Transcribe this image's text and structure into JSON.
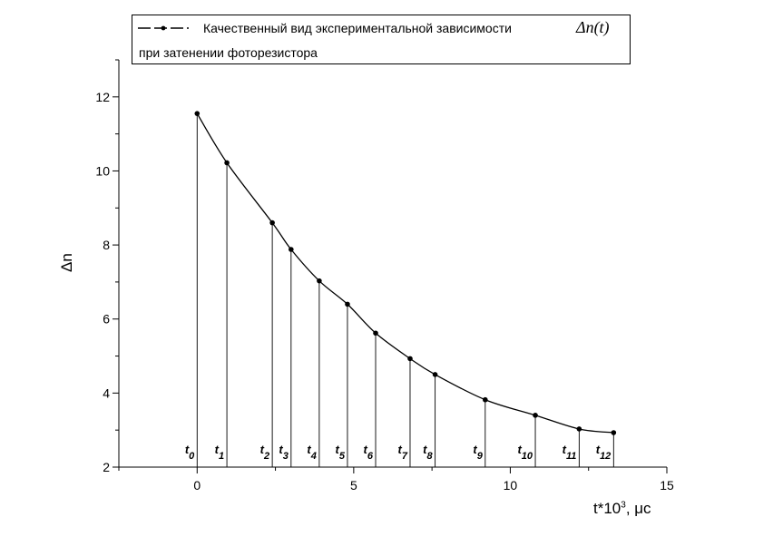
{
  "chart_data": {
    "type": "line",
    "x": [
      0,
      0.95,
      2.4,
      3.0,
      3.9,
      4.8,
      5.7,
      6.8,
      7.6,
      9.2,
      10.8,
      12.2,
      13.3
    ],
    "y": [
      11.55,
      10.22,
      8.6,
      7.88,
      7.03,
      6.4,
      5.62,
      4.93,
      4.5,
      3.82,
      3.4,
      3.03,
      2.93
    ],
    "point_labels": [
      "0",
      "1",
      "2",
      "3",
      "4",
      "5",
      "6",
      "7",
      "8",
      "9",
      "10",
      "11",
      "12"
    ],
    "point_label_prefix": "t",
    "xlim": [
      -2.5,
      15
    ],
    "ylim": [
      2,
      13
    ],
    "xticks": [
      0,
      5,
      10,
      15
    ],
    "yticks": [
      2,
      4,
      6,
      8,
      10,
      12
    ],
    "xlabel": "t*10",
    "xlabel_sup": "3",
    "xlabel_unit": ", μс",
    "ylabel": "Δn",
    "legend": {
      "text_line1": "Качественный вид экспериментальной зависимости",
      "symbol": "Δn(t)",
      "text_line2": "при затенении фоторезистора",
      "placement": "top"
    },
    "grid": false,
    "vertical_drop_lines": true,
    "line_color": "#000000"
  }
}
